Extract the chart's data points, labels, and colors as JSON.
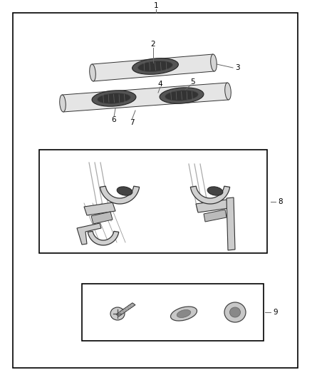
{
  "bg_color": "#ffffff",
  "border_color": "#000000",
  "label_color": "#000000",
  "fig_width": 4.38,
  "fig_height": 5.33,
  "font_size": 7.5
}
